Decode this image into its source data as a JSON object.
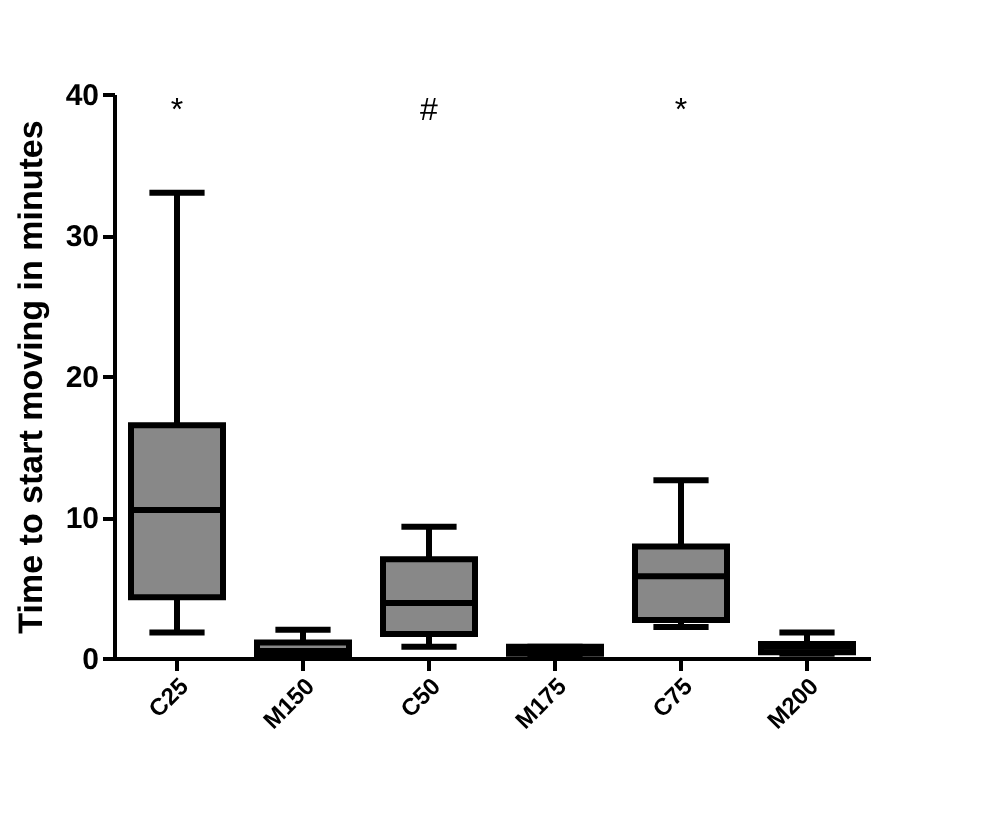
{
  "chart_data": {
    "type": "box",
    "ylabel": "Time to start moving in minutes",
    "categories": [
      "C25",
      "M150",
      "C50",
      "M175",
      "C75",
      "M200"
    ],
    "boxes": [
      {
        "low": 1.8,
        "q1": 4.3,
        "median": 10.5,
        "q3": 16.5,
        "high": 33
      },
      {
        "low": 0,
        "q1": 0.2,
        "median": 0.5,
        "q3": 1.1,
        "high": 2.0
      },
      {
        "low": 0.8,
        "q1": 1.7,
        "median": 3.9,
        "q3": 7.0,
        "high": 9.3
      },
      {
        "low": 0.2,
        "q1": 0.3,
        "median": 0.5,
        "q3": 0.8,
        "high": 0.8
      },
      {
        "low": 2.2,
        "q1": 2.7,
        "median": 5.8,
        "q3": 7.9,
        "high": 12.6
      },
      {
        "low": 0.3,
        "q1": 0.4,
        "median": 0.8,
        "q3": 1.0,
        "high": 1.8
      }
    ],
    "color": "#888888",
    "ylim": [
      0,
      40
    ],
    "yticks": [
      0,
      10,
      20,
      30,
      40
    ],
    "grid": false,
    "annotations": [
      "*",
      "#",
      "*"
    ]
  }
}
